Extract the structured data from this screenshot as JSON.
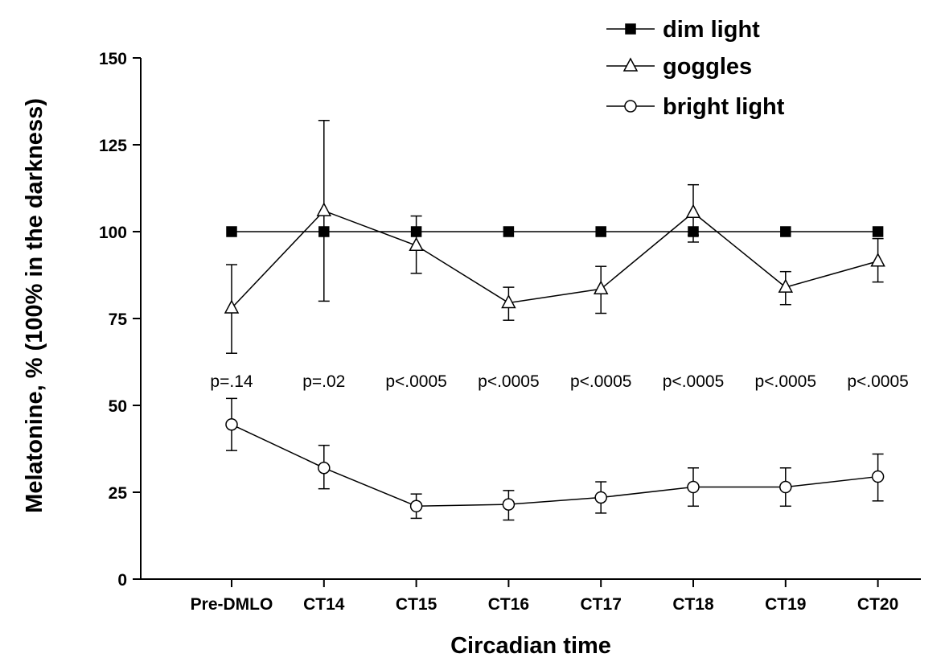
{
  "chart_data": {
    "type": "line",
    "xlabel": "Circadian time",
    "ylabel": "Melatonine, % (100% in the darkness)",
    "categories": [
      "Pre-DMLO",
      "CT14",
      "CT15",
      "CT16",
      "CT17",
      "CT18",
      "CT19",
      "CT20"
    ],
    "ylim": [
      0,
      150
    ],
    "yticks": [
      0,
      25,
      50,
      75,
      100,
      125,
      150
    ],
    "legend_position": "top-right",
    "series": [
      {
        "name": "dim light",
        "marker": "square-filled",
        "values": [
          100,
          100,
          100,
          100,
          100,
          100,
          100,
          100
        ],
        "error_lower": [
          null,
          null,
          null,
          null,
          null,
          97,
          null,
          null
        ],
        "error_upper": [
          null,
          null,
          null,
          null,
          null,
          100,
          null,
          null
        ]
      },
      {
        "name": "goggles",
        "marker": "triangle-open",
        "values": [
          78,
          106,
          96,
          79.5,
          83.5,
          105.5,
          84,
          91.5
        ],
        "error_lower": [
          65,
          80,
          88,
          74.5,
          76.5,
          99,
          79,
          85.5
        ],
        "error_upper": [
          90.5,
          132,
          104.5,
          84,
          90,
          113.5,
          88.5,
          98
        ]
      },
      {
        "name": "bright light",
        "marker": "circle-open",
        "values": [
          44.5,
          32,
          21,
          21.5,
          23.5,
          26.5,
          26.5,
          29.5
        ],
        "error_lower": [
          37,
          26,
          17.5,
          17,
          19,
          21,
          21,
          22.5
        ],
        "error_upper": [
          52,
          38.5,
          24.5,
          25.5,
          28,
          32,
          32,
          36
        ]
      }
    ],
    "annotations": [
      "p=.14",
      "p=.02",
      "p<.0005",
      "p<.0005",
      "p<.0005",
      "p<.0005",
      "p<.0005",
      "p<.0005"
    ]
  }
}
